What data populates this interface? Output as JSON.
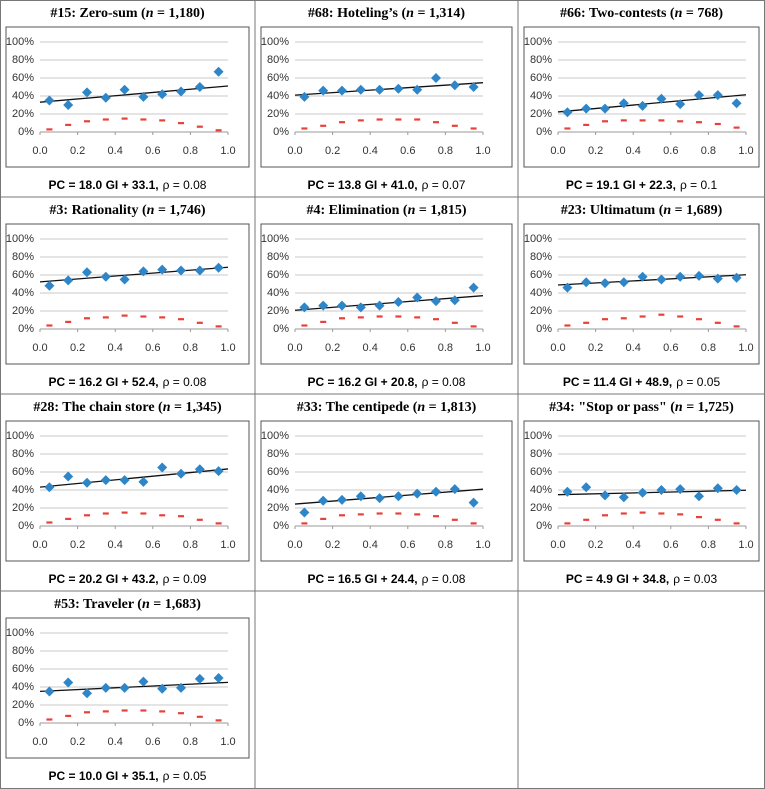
{
  "chart_data": [
    {
      "type": "scatter",
      "title_pre": "#15: Zero-sum (",
      "title_var": "n",
      "title_post": " = 1,180)",
      "caption_fit": "PC = 18.0 GI + 33.1,",
      "caption_rho": "ρ = 0.08",
      "fit": {
        "slope": 18.0,
        "intercept": 33.1
      },
      "x": [
        0.05,
        0.15,
        0.25,
        0.35,
        0.45,
        0.55,
        0.65,
        0.75,
        0.85,
        0.95
      ],
      "series": [
        {
          "marker": "diamond",
          "color": "#2e86c8",
          "values": [
            35,
            30,
            44,
            38,
            47,
            39,
            42,
            45,
            50,
            67
          ]
        },
        {
          "marker": "dash",
          "color": "#e8413a",
          "values": [
            3,
            8,
            12,
            14,
            15,
            14,
            13,
            10,
            6,
            2
          ]
        }
      ],
      "xlim": [
        0,
        1
      ],
      "ylim": [
        0,
        100
      ],
      "xticks": [
        {
          "value": 0,
          "label": "0.0"
        },
        0.2,
        0.4,
        0.6,
        0.8,
        {
          "value": 1,
          "label": "1.0"
        }
      ],
      "yticks": [
        {
          "value": 0,
          "label": "0%"
        },
        {
          "value": 20,
          "label": "20%"
        },
        {
          "value": 40,
          "label": "40%"
        },
        {
          "value": 60,
          "label": "60%"
        },
        {
          "value": 80,
          "label": "80%"
        },
        {
          "value": 100,
          "label": "100%"
        }
      ],
      "grid": true
    },
    {
      "type": "scatter",
      "title_pre": "#68: Hoteling’s (",
      "title_var": "n",
      "title_post": " = 1,314)",
      "caption_fit": "PC = 13.8 GI + 41.0,",
      "caption_rho": "ρ = 0.07",
      "fit": {
        "slope": 13.8,
        "intercept": 41.0
      },
      "x": [
        0.05,
        0.15,
        0.25,
        0.35,
        0.45,
        0.55,
        0.65,
        0.75,
        0.85,
        0.95
      ],
      "series": [
        {
          "marker": "diamond",
          "color": "#2e86c8",
          "values": [
            39,
            46,
            46,
            47,
            47,
            48,
            47,
            60,
            52,
            50
          ]
        },
        {
          "marker": "dash",
          "color": "#e8413a",
          "values": [
            4,
            7,
            11,
            13,
            14,
            14,
            14,
            11,
            7,
            4
          ]
        }
      ],
      "xlim": [
        0,
        1
      ],
      "ylim": [
        0,
        100
      ],
      "xticks": [
        {
          "value": 0,
          "label": "0.0"
        },
        0.2,
        0.4,
        0.6,
        0.8,
        {
          "value": 1,
          "label": "1.0"
        }
      ],
      "yticks": [
        {
          "value": 0,
          "label": "0%"
        },
        {
          "value": 20,
          "label": "20%"
        },
        {
          "value": 40,
          "label": "40%"
        },
        {
          "value": 60,
          "label": "60%"
        },
        {
          "value": 80,
          "label": "80%"
        },
        {
          "value": 100,
          "label": "100%"
        }
      ],
      "grid": true
    },
    {
      "type": "scatter",
      "title_pre": "#66: Two-contests (",
      "title_var": "n",
      "title_post": " = 768)",
      "caption_fit": "PC = 19.1 GI + 22.3,",
      "caption_rho": "ρ = 0.1",
      "fit": {
        "slope": 19.1,
        "intercept": 22.3
      },
      "x": [
        0.05,
        0.15,
        0.25,
        0.35,
        0.45,
        0.55,
        0.65,
        0.75,
        0.85,
        0.95
      ],
      "series": [
        {
          "marker": "diamond",
          "color": "#2e86c8",
          "values": [
            22,
            26,
            26,
            32,
            29,
            37,
            31,
            41,
            41,
            32
          ]
        },
        {
          "marker": "dash",
          "color": "#e8413a",
          "values": [
            4,
            8,
            12,
            13,
            13,
            13,
            12,
            11,
            9,
            5
          ]
        }
      ],
      "xlim": [
        0,
        1
      ],
      "ylim": [
        0,
        100
      ],
      "xticks": [
        {
          "value": 0,
          "label": "0.0"
        },
        0.2,
        0.4,
        0.6,
        0.8,
        {
          "value": 1,
          "label": "1.0"
        }
      ],
      "yticks": [
        {
          "value": 0,
          "label": "0%"
        },
        {
          "value": 20,
          "label": "20%"
        },
        {
          "value": 40,
          "label": "40%"
        },
        {
          "value": 60,
          "label": "60%"
        },
        {
          "value": 80,
          "label": "80%"
        },
        {
          "value": 100,
          "label": "100%"
        }
      ],
      "grid": true
    },
    {
      "type": "scatter",
      "title_pre": "#3: Rationality (",
      "title_var": "n",
      "title_post": " = 1,746)",
      "caption_fit": "PC = 16.2 GI + 52.4,",
      "caption_rho": "ρ = 0.08",
      "fit": {
        "slope": 16.2,
        "intercept": 52.4
      },
      "x": [
        0.05,
        0.15,
        0.25,
        0.35,
        0.45,
        0.55,
        0.65,
        0.75,
        0.85,
        0.95
      ],
      "series": [
        {
          "marker": "diamond",
          "color": "#2e86c8",
          "values": [
            48,
            54,
            63,
            58,
            55,
            64,
            66,
            65,
            65,
            68
          ]
        },
        {
          "marker": "dash",
          "color": "#e8413a",
          "values": [
            4,
            8,
            12,
            13,
            15,
            14,
            13,
            11,
            7,
            3
          ]
        }
      ],
      "xlim": [
        0,
        1
      ],
      "ylim": [
        0,
        100
      ],
      "xticks": [
        {
          "value": 0,
          "label": "0.0"
        },
        0.2,
        0.4,
        0.6,
        0.8,
        {
          "value": 1,
          "label": "1.0"
        }
      ],
      "yticks": [
        {
          "value": 0,
          "label": "0%"
        },
        {
          "value": 20,
          "label": "20%"
        },
        {
          "value": 40,
          "label": "40%"
        },
        {
          "value": 60,
          "label": "60%"
        },
        {
          "value": 80,
          "label": "80%"
        },
        {
          "value": 100,
          "label": "100%"
        }
      ],
      "grid": true
    },
    {
      "type": "scatter",
      "title_pre": "#4: Elimination (",
      "title_var": "n",
      "title_post": " = 1,815)",
      "caption_fit": "PC = 16.2 GI + 20.8,",
      "caption_rho": "ρ = 0.08",
      "fit": {
        "slope": 16.2,
        "intercept": 20.8
      },
      "x": [
        0.05,
        0.15,
        0.25,
        0.35,
        0.45,
        0.55,
        0.65,
        0.75,
        0.85,
        0.95
      ],
      "series": [
        {
          "marker": "diamond",
          "color": "#2e86c8",
          "values": [
            24,
            26,
            26,
            24,
            26,
            30,
            35,
            31,
            32,
            46
          ]
        },
        {
          "marker": "dash",
          "color": "#e8413a",
          "values": [
            4,
            8,
            12,
            13,
            14,
            14,
            13,
            11,
            7,
            3
          ]
        }
      ],
      "xlim": [
        0,
        1
      ],
      "ylim": [
        0,
        100
      ],
      "xticks": [
        {
          "value": 0,
          "label": "0.0"
        },
        0.2,
        0.4,
        0.6,
        0.8,
        {
          "value": 1,
          "label": "1.0"
        }
      ],
      "yticks": [
        {
          "value": 0,
          "label": "0%"
        },
        {
          "value": 20,
          "label": "20%"
        },
        {
          "value": 40,
          "label": "40%"
        },
        {
          "value": 60,
          "label": "60%"
        },
        {
          "value": 80,
          "label": "80%"
        },
        {
          "value": 100,
          "label": "100%"
        }
      ],
      "grid": true
    },
    {
      "type": "scatter",
      "title_pre": "#23: Ultimatum (",
      "title_var": "n",
      "title_post": " = 1,689)",
      "caption_fit": "PC = 11.4 GI + 48.9,",
      "caption_rho": "ρ = 0.05",
      "fit": {
        "slope": 11.4,
        "intercept": 48.9
      },
      "x": [
        0.05,
        0.15,
        0.25,
        0.35,
        0.45,
        0.55,
        0.65,
        0.75,
        0.85,
        0.95
      ],
      "series": [
        {
          "marker": "diamond",
          "color": "#2e86c8",
          "values": [
            46,
            52,
            51,
            52,
            58,
            55,
            58,
            59,
            56,
            57
          ]
        },
        {
          "marker": "dash",
          "color": "#e8413a",
          "values": [
            4,
            7,
            11,
            12,
            14,
            16,
            14,
            11,
            7,
            3
          ]
        }
      ],
      "xlim": [
        0,
        1
      ],
      "ylim": [
        0,
        100
      ],
      "xticks": [
        {
          "value": 0,
          "label": "0.0"
        },
        0.2,
        0.4,
        0.6,
        0.8,
        {
          "value": 1,
          "label": "1.0"
        }
      ],
      "yticks": [
        {
          "value": 0,
          "label": "0%"
        },
        {
          "value": 20,
          "label": "20%"
        },
        {
          "value": 40,
          "label": "40%"
        },
        {
          "value": 60,
          "label": "60%"
        },
        {
          "value": 80,
          "label": "80%"
        },
        {
          "value": 100,
          "label": "100%"
        }
      ],
      "grid": true
    },
    {
      "type": "scatter",
      "title_pre": "#28: The chain store (",
      "title_var": "n",
      "title_post": " = 1,345)",
      "caption_fit": "PC = 20.2 GI + 43.2,",
      "caption_rho": "ρ = 0.09",
      "fit": {
        "slope": 20.2,
        "intercept": 43.2
      },
      "x": [
        0.05,
        0.15,
        0.25,
        0.35,
        0.45,
        0.55,
        0.65,
        0.75,
        0.85,
        0.95
      ],
      "series": [
        {
          "marker": "diamond",
          "color": "#2e86c8",
          "values": [
            43,
            55,
            48,
            51,
            51,
            49,
            65,
            58,
            63,
            61
          ]
        },
        {
          "marker": "dash",
          "color": "#e8413a",
          "values": [
            4,
            8,
            12,
            14,
            15,
            14,
            12,
            11,
            7,
            3
          ]
        }
      ],
      "xlim": [
        0,
        1
      ],
      "ylim": [
        0,
        100
      ],
      "xticks": [
        {
          "value": 0,
          "label": "0.0"
        },
        0.2,
        0.4,
        0.6,
        0.8,
        {
          "value": 1,
          "label": "1.0"
        }
      ],
      "yticks": [
        {
          "value": 0,
          "label": "0%"
        },
        {
          "value": 20,
          "label": "20%"
        },
        {
          "value": 40,
          "label": "40%"
        },
        {
          "value": 60,
          "label": "60%"
        },
        {
          "value": 80,
          "label": "80%"
        },
        {
          "value": 100,
          "label": "100%"
        }
      ],
      "grid": true
    },
    {
      "type": "scatter",
      "title_pre": "#33: The centipede (",
      "title_var": "n",
      "title_post": " = 1,813)",
      "caption_fit": "PC = 16.5 GI + 24.4,",
      "caption_rho": "ρ = 0.08",
      "fit": {
        "slope": 16.5,
        "intercept": 24.4
      },
      "x": [
        0.05,
        0.15,
        0.25,
        0.35,
        0.45,
        0.55,
        0.65,
        0.75,
        0.85,
        0.95
      ],
      "series": [
        {
          "marker": "diamond",
          "color": "#2e86c8",
          "values": [
            15,
            28,
            29,
            33,
            31,
            33,
            36,
            38,
            41,
            26
          ]
        },
        {
          "marker": "dash",
          "color": "#e8413a",
          "values": [
            3,
            8,
            12,
            13,
            14,
            14,
            13,
            11,
            7,
            3
          ]
        }
      ],
      "xlim": [
        0,
        1
      ],
      "ylim": [
        0,
        100
      ],
      "xticks": [
        {
          "value": 0,
          "label": "0.0"
        },
        0.2,
        0.4,
        0.6,
        0.8,
        {
          "value": 1,
          "label": "1.0"
        }
      ],
      "yticks": [
        {
          "value": 0,
          "label": "0%"
        },
        {
          "value": 20,
          "label": "20%"
        },
        {
          "value": 40,
          "label": "40%"
        },
        {
          "value": 60,
          "label": "60%"
        },
        {
          "value": 80,
          "label": "80%"
        },
        {
          "value": 100,
          "label": "100%"
        }
      ],
      "grid": true
    },
    {
      "type": "scatter",
      "title_pre": "#34: \"Stop or pass\" (",
      "title_var": "n",
      "title_post": " = 1,725)",
      "caption_fit": "PC = 4.9 GI + 34.8,",
      "caption_rho": "ρ = 0.03",
      "fit": {
        "slope": 4.9,
        "intercept": 34.8
      },
      "x": [
        0.05,
        0.15,
        0.25,
        0.35,
        0.45,
        0.55,
        0.65,
        0.75,
        0.85,
        0.95
      ],
      "series": [
        {
          "marker": "diamond",
          "color": "#2e86c8",
          "values": [
            38,
            43,
            34,
            32,
            37,
            40,
            41,
            33,
            42,
            40
          ]
        },
        {
          "marker": "dash",
          "color": "#e8413a",
          "values": [
            3,
            7,
            12,
            14,
            15,
            14,
            13,
            10,
            7,
            3
          ]
        }
      ],
      "xlim": [
        0,
        1
      ],
      "ylim": [
        0,
        100
      ],
      "xticks": [
        {
          "value": 0,
          "label": "0.0"
        },
        0.2,
        0.4,
        0.6,
        0.8,
        {
          "value": 1,
          "label": "1.0"
        }
      ],
      "yticks": [
        {
          "value": 0,
          "label": "0%"
        },
        {
          "value": 20,
          "label": "20%"
        },
        {
          "value": 40,
          "label": "40%"
        },
        {
          "value": 60,
          "label": "60%"
        },
        {
          "value": 80,
          "label": "80%"
        },
        {
          "value": 100,
          "label": "100%"
        }
      ],
      "grid": true
    },
    {
      "type": "scatter",
      "title_pre": "#53: Traveler (",
      "title_var": "n",
      "title_post": " = 1,683)",
      "caption_fit": "PC = 10.0 GI + 35.1,",
      "caption_rho": "ρ = 0.05",
      "fit": {
        "slope": 10.0,
        "intercept": 35.1
      },
      "x": [
        0.05,
        0.15,
        0.25,
        0.35,
        0.45,
        0.55,
        0.65,
        0.75,
        0.85,
        0.95
      ],
      "series": [
        {
          "marker": "diamond",
          "color": "#2e86c8",
          "values": [
            35,
            45,
            33,
            39,
            39,
            46,
            38,
            39,
            49,
            50
          ]
        },
        {
          "marker": "dash",
          "color": "#e8413a",
          "values": [
            4,
            8,
            12,
            13,
            14,
            14,
            13,
            11,
            7,
            3
          ]
        }
      ],
      "xlim": [
        0,
        1
      ],
      "ylim": [
        0,
        100
      ],
      "xticks": [
        {
          "value": 0,
          "label": "0.0"
        },
        0.2,
        0.4,
        0.6,
        0.8,
        {
          "value": 1,
          "label": "1.0"
        }
      ],
      "yticks": [
        {
          "value": 0,
          "label": "0%"
        },
        {
          "value": 20,
          "label": "20%"
        },
        {
          "value": 40,
          "label": "40%"
        },
        {
          "value": 60,
          "label": "60%"
        },
        {
          "value": 80,
          "label": "80%"
        },
        {
          "value": 100,
          "label": "100%"
        }
      ],
      "grid": true
    }
  ]
}
